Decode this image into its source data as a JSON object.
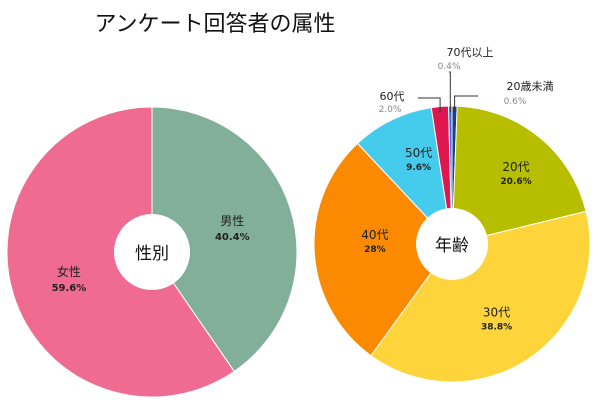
{
  "title": "アンケート回答者の属性",
  "chart_data": [
    {
      "type": "pie",
      "center_label": "性別",
      "slices": [
        {
          "name": "男性",
          "value": 40.4,
          "label": "40.4%",
          "color": "#82af99"
        },
        {
          "name": "女性",
          "value": 59.6,
          "label": "59.6%",
          "color": "#f06b92"
        }
      ]
    },
    {
      "type": "pie",
      "center_label": "年齢",
      "slices": [
        {
          "name": "20歳未満",
          "value": 0.6,
          "label": "0.6%",
          "color": "#1d3d8f"
        },
        {
          "name": "20代",
          "value": 20.6,
          "label": "20.6%",
          "color": "#b7be00"
        },
        {
          "name": "30代",
          "value": 38.8,
          "label": "38.8%",
          "color": "#fdd43a"
        },
        {
          "name": "40代",
          "value": 28,
          "label": "28%",
          "color": "#fb8a00"
        },
        {
          "name": "50代",
          "value": 9.6,
          "label": "9.6%",
          "color": "#45ccec"
        },
        {
          "name": "60代",
          "value": 2.0,
          "label": "2.0%",
          "color": "#e0174f"
        },
        {
          "name": "70代以上",
          "value": 0.4,
          "label": "0.4%",
          "color": "#2f6fe0"
        }
      ]
    }
  ]
}
